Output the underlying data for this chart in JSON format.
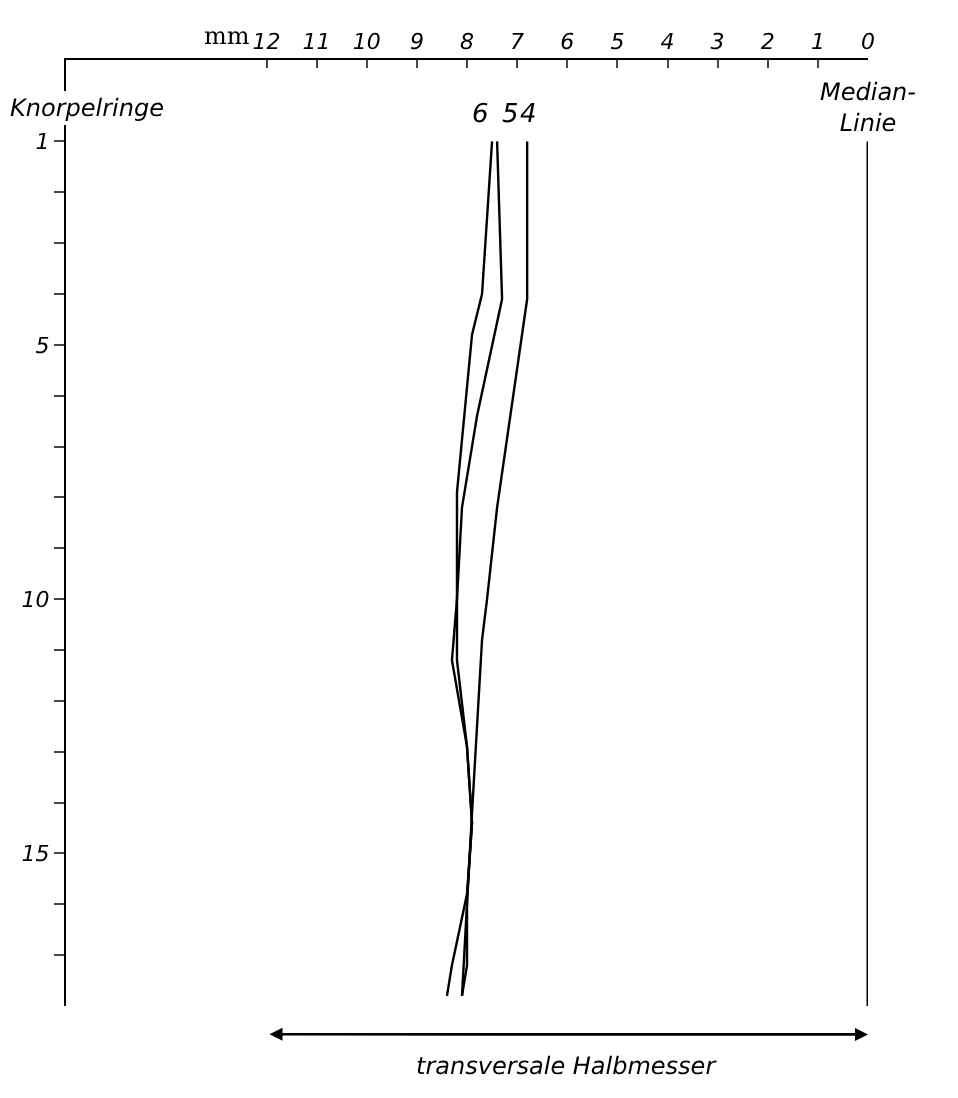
{
  "chart_data": {
    "type": "line",
    "orientation": "horizontal",
    "xlabel": "mm",
    "ylabel": "Knorpelringe",
    "xlim": [
      16,
      0
    ],
    "xticks": [
      12,
      11,
      10,
      9,
      8,
      7,
      6,
      5,
      4,
      3,
      2,
      1,
      0
    ],
    "ylim": [
      18,
      -0.6
    ],
    "yticks": [
      1,
      {
        "value": 2,
        "label": null
      },
      {
        "value": 3,
        "label": null
      },
      {
        "value": 4,
        "label": null
      },
      5,
      {
        "value": 6,
        "label": null
      },
      {
        "value": 7,
        "label": null
      },
      {
        "value": 8,
        "label": null
      },
      {
        "value": 9,
        "label": null
      },
      10,
      {
        "value": 11,
        "label": null
      },
      {
        "value": 12,
        "label": null
      },
      {
        "value": 13,
        "label": null
      },
      {
        "value": 14,
        "label": null
      },
      15,
      {
        "value": 16,
        "label": null
      },
      {
        "value": 17,
        "label": null
      }
    ],
    "series": [
      {
        "name": "6",
        "color": "#000000",
        "x": [
          1,
          4,
          4.8,
          7.9,
          10,
          11.2,
          12.9,
          14.4,
          15.8,
          17.2,
          17.8
        ],
        "values": [
          7.5,
          7.7,
          7.9,
          8.2,
          8.2,
          8.2,
          8.0,
          7.9,
          8.0,
          8.3,
          8.4
        ]
      },
      {
        "name": "5",
        "color": "#000000",
        "x": [
          1,
          4.1,
          6.4,
          8.2,
          10,
          11.2,
          12.9,
          14.4,
          15.9,
          17.2,
          17.8
        ],
        "values": [
          7.4,
          7.3,
          7.8,
          8.1,
          8.2,
          8.3,
          8.0,
          7.9,
          8.0,
          8.0,
          8.1
        ]
      },
      {
        "name": "4",
        "color": "#000000",
        "x": [
          1,
          4.1,
          8.2,
          10,
          10.8,
          14.2,
          17.8
        ],
        "values": [
          6.8,
          6.8,
          7.4,
          7.6,
          7.7,
          7.9,
          8.1
        ]
      }
    ],
    "ref_lines": [
      {
        "axis": "x",
        "value": 0,
        "label": "Median-Linie",
        "color": "#000000"
      }
    ],
    "annotations": [
      "transversale Halbmesser"
    ],
    "marker": "none",
    "line_style": "solid",
    "legend": false
  }
}
